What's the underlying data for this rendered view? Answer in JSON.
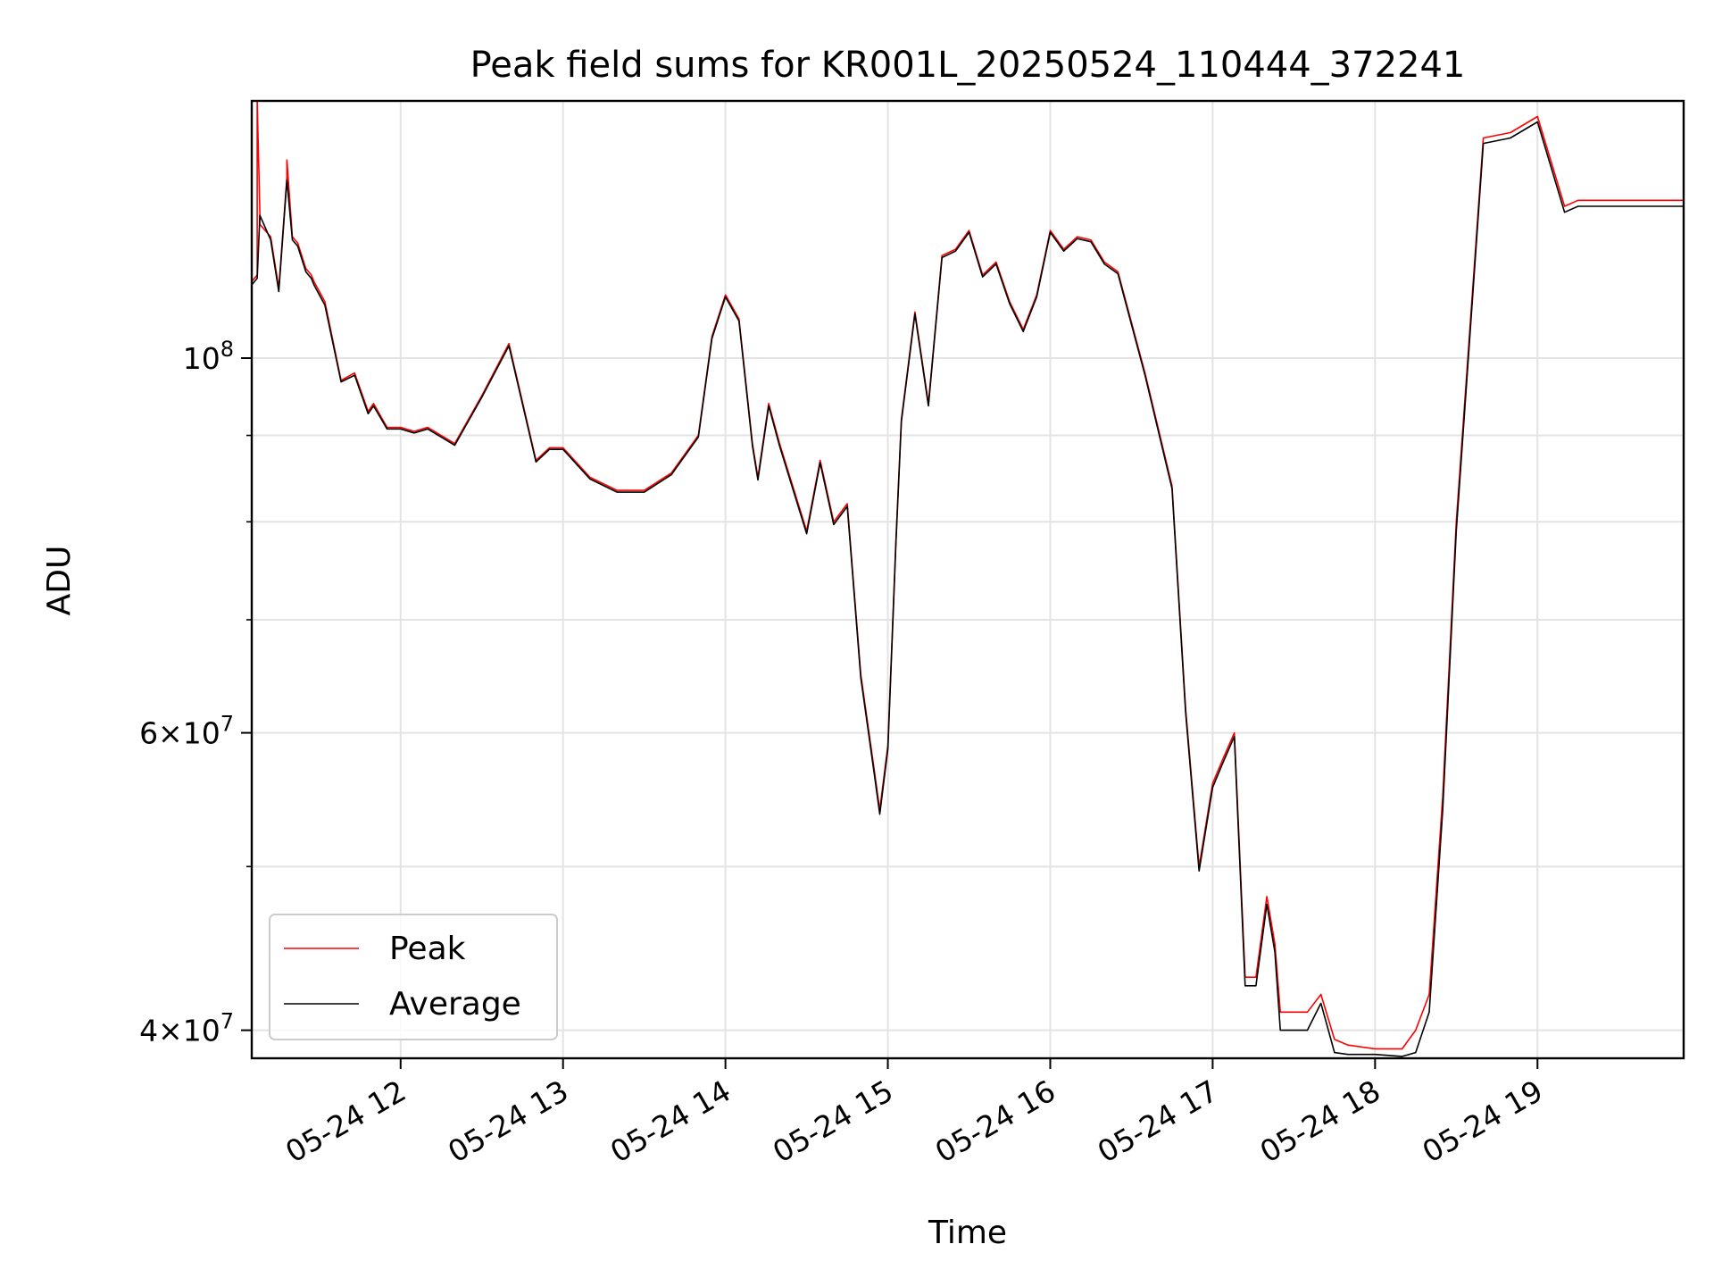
{
  "chart_data": {
    "type": "line",
    "title": "Peak field sums for KR001L_20250524_110444_372241",
    "xlabel": "Time",
    "ylabel": "ADU",
    "yscale": "log",
    "xlim": [
      "2025-05-24 11:05",
      "2025-05-24 19:54"
    ],
    "ylim": [
      38500000,
      142000000
    ],
    "grid": true,
    "legend_position": "lower-left",
    "x_tick_labels": [
      "05-24 12",
      "05-24 13",
      "05-24 14",
      "05-24 15",
      "05-24 16",
      "05-24 17",
      "05-24 18",
      "05-24 19"
    ],
    "x_tick_values": [
      "2025-05-24 12:00",
      "2025-05-24 13:00",
      "2025-05-24 14:00",
      "2025-05-24 15:00",
      "2025-05-24 16:00",
      "2025-05-24 17:00",
      "2025-05-24 18:00",
      "2025-05-24 19:00"
    ],
    "y_major_ticks": [
      {
        "value": 100000000,
        "base": "10",
        "exp": "8"
      },
      {
        "value": 60000000,
        "mant": "6",
        "base": "10",
        "exp": "7"
      },
      {
        "value": 40000000,
        "mant": "4",
        "base": "10",
        "exp": "7"
      }
    ],
    "y_minor_gridlines": [
      50000000,
      70000000,
      80000000,
      90000000
    ],
    "series": [
      {
        "name": "Peak",
        "color": "#ff0000",
        "x": [
          "2025-05-24 11:05",
          "2025-05-24 11:07",
          "2025-05-24 11:07",
          "2025-05-24 11:08",
          "2025-05-24 11:08",
          "2025-05-24 11:12",
          "2025-05-24 11:15",
          "2025-05-24 11:18",
          "2025-05-24 11:18",
          "2025-05-24 11:20",
          "2025-05-24 11:22",
          "2025-05-24 11:25",
          "2025-05-24 11:27",
          "2025-05-24 11:28",
          "2025-05-24 11:32",
          "2025-05-24 11:38",
          "2025-05-24 11:43",
          "2025-05-24 11:48",
          "2025-05-24 11:50",
          "2025-05-24 11:55",
          "2025-05-24 12:00",
          "2025-05-24 12:05",
          "2025-05-24 12:10",
          "2025-05-24 12:20",
          "2025-05-24 12:30",
          "2025-05-24 12:40",
          "2025-05-24 12:50",
          "2025-05-24 12:55",
          "2025-05-24 13:00",
          "2025-05-24 13:10",
          "2025-05-24 13:20",
          "2025-05-24 13:30",
          "2025-05-24 13:40",
          "2025-05-24 13:50",
          "2025-05-24 13:55",
          "2025-05-24 14:00",
          "2025-05-24 14:05",
          "2025-05-24 14:10",
          "2025-05-24 14:12",
          "2025-05-24 14:16",
          "2025-05-24 14:20",
          "2025-05-24 14:30",
          "2025-05-24 14:35",
          "2025-05-24 14:40",
          "2025-05-24 14:45",
          "2025-05-24 14:50",
          "2025-05-24 14:55",
          "2025-05-24 14:57",
          "2025-05-24 15:00",
          "2025-05-24 15:03",
          "2025-05-24 15:05",
          "2025-05-24 15:10",
          "2025-05-24 15:15",
          "2025-05-24 15:20",
          "2025-05-24 15:25",
          "2025-05-24 15:30",
          "2025-05-24 15:35",
          "2025-05-24 15:40",
          "2025-05-24 15:45",
          "2025-05-24 15:50",
          "2025-05-24 15:55",
          "2025-05-24 16:00",
          "2025-05-24 16:05",
          "2025-05-24 16:10",
          "2025-05-24 16:15",
          "2025-05-24 16:20",
          "2025-05-24 16:25",
          "2025-05-24 16:35",
          "2025-05-24 16:45",
          "2025-05-24 16:50",
          "2025-05-24 16:55",
          "2025-05-24 17:00",
          "2025-05-24 17:04",
          "2025-05-24 17:08",
          "2025-05-24 17:12",
          "2025-05-24 17:16",
          "2025-05-24 17:20",
          "2025-05-24 17:23",
          "2025-05-24 17:25",
          "2025-05-24 17:30",
          "2025-05-24 17:35",
          "2025-05-24 17:40",
          "2025-05-24 17:45",
          "2025-05-24 17:50",
          "2025-05-24 18:00",
          "2025-05-24 18:10",
          "2025-05-24 18:15",
          "2025-05-24 18:20",
          "2025-05-24 18:25",
          "2025-05-24 18:30",
          "2025-05-24 18:40",
          "2025-05-24 18:50",
          "2025-05-24 19:00",
          "2025-05-24 19:10",
          "2025-05-24 19:15",
          "2025-05-24 19:20",
          "2025-05-24 19:25",
          "2025-05-24 19:30",
          "2025-05-24 19:35",
          "2025-05-24 19:40",
          "2025-05-24 19:45",
          "2025-05-24 19:50",
          "2025-05-24 19:51",
          "2025-05-24 19:54"
        ],
        "values": [
          111000000,
          112000000,
          142000000,
          122000000,
          120000000,
          118000000,
          110000000,
          128000000,
          131000000,
          118000000,
          117000000,
          113000000,
          112000000,
          111000000,
          108000000,
          97000000,
          98000000,
          93000000,
          94000000,
          91000000,
          91000000,
          90500000,
          91000000,
          89000000,
          95000000,
          102000000,
          87000000,
          88500000,
          88500000,
          85000000,
          83500000,
          83500000,
          85500000,
          90000000,
          103000000,
          109000000,
          105500000,
          89000000,
          85000000,
          94000000,
          89000000,
          79000000,
          87000000,
          80000000,
          82000000,
          65000000,
          57000000,
          54000000,
          59000000,
          78000000,
          92000000,
          106500000,
          94000000,
          115000000,
          116000000,
          119000000,
          112000000,
          114000000,
          108000000,
          104000000,
          109000000,
          119000000,
          116000000,
          118000000,
          117500000,
          114000000,
          112500000,
          98000000,
          84000000,
          62000000,
          50000000,
          56000000,
          58000000,
          60000000,
          43000000,
          43000000,
          48000000,
          45000000,
          41000000,
          41000000,
          41000000,
          42000000,
          39500000,
          39200000,
          39000000,
          39000000,
          40000000,
          42000000,
          55000000,
          80000000,
          135000000,
          136000000,
          139000000,
          123000000,
          124000000,
          124000000,
          124000000,
          124000000,
          124000000,
          124000000,
          124000000,
          124000000,
          124000000,
          124000000
        ]
      },
      {
        "name": "Average",
        "color": "#000000",
        "x": [
          "2025-05-24 11:05",
          "2025-05-24 11:07",
          "2025-05-24 11:08",
          "2025-05-24 11:12",
          "2025-05-24 11:15",
          "2025-05-24 11:18",
          "2025-05-24 11:20",
          "2025-05-24 11:22",
          "2025-05-24 11:25",
          "2025-05-24 11:27",
          "2025-05-24 11:28",
          "2025-05-24 11:32",
          "2025-05-24 11:38",
          "2025-05-24 11:43",
          "2025-05-24 11:48",
          "2025-05-24 11:50",
          "2025-05-24 11:55",
          "2025-05-24 12:00",
          "2025-05-24 12:05",
          "2025-05-24 12:10",
          "2025-05-24 12:20",
          "2025-05-24 12:30",
          "2025-05-24 12:40",
          "2025-05-24 12:50",
          "2025-05-24 12:55",
          "2025-05-24 13:00",
          "2025-05-24 13:10",
          "2025-05-24 13:20",
          "2025-05-24 13:30",
          "2025-05-24 13:40",
          "2025-05-24 13:50",
          "2025-05-24 13:55",
          "2025-05-24 14:00",
          "2025-05-24 14:05",
          "2025-05-24 14:10",
          "2025-05-24 14:12",
          "2025-05-24 14:16",
          "2025-05-24 14:20",
          "2025-05-24 14:30",
          "2025-05-24 14:35",
          "2025-05-24 14:40",
          "2025-05-24 14:45",
          "2025-05-24 14:50",
          "2025-05-24 14:55",
          "2025-05-24 14:57",
          "2025-05-24 15:00",
          "2025-05-24 15:03",
          "2025-05-24 15:05",
          "2025-05-24 15:10",
          "2025-05-24 15:15",
          "2025-05-24 15:20",
          "2025-05-24 15:25",
          "2025-05-24 15:30",
          "2025-05-24 15:35",
          "2025-05-24 15:40",
          "2025-05-24 15:45",
          "2025-05-24 15:50",
          "2025-05-24 15:55",
          "2025-05-24 16:00",
          "2025-05-24 16:05",
          "2025-05-24 16:10",
          "2025-05-24 16:15",
          "2025-05-24 16:20",
          "2025-05-24 16:25",
          "2025-05-24 16:35",
          "2025-05-24 16:45",
          "2025-05-24 16:50",
          "2025-05-24 16:55",
          "2025-05-24 17:00",
          "2025-05-24 17:04",
          "2025-05-24 17:08",
          "2025-05-24 17:12",
          "2025-05-24 17:16",
          "2025-05-24 17:20",
          "2025-05-24 17:23",
          "2025-05-24 17:25",
          "2025-05-24 17:30",
          "2025-05-24 17:35",
          "2025-05-24 17:40",
          "2025-05-24 17:45",
          "2025-05-24 17:50",
          "2025-05-24 18:00",
          "2025-05-24 18:10",
          "2025-05-24 18:15",
          "2025-05-24 18:20",
          "2025-05-24 18:25",
          "2025-05-24 18:30",
          "2025-05-24 18:40",
          "2025-05-24 18:50",
          "2025-05-24 19:00",
          "2025-05-24 19:10",
          "2025-05-24 19:15",
          "2025-05-24 19:20",
          "2025-05-24 19:25",
          "2025-05-24 19:30",
          "2025-05-24 19:35",
          "2025-05-24 19:40",
          "2025-05-24 19:45",
          "2025-05-24 19:50",
          "2025-05-24 19:51",
          "2025-05-24 19:54"
        ],
        "values": [
          110500000,
          111500000,
          121500000,
          117500000,
          109500000,
          127500000,
          117500000,
          116500000,
          112500000,
          111500000,
          110500000,
          107500000,
          96800000,
          97700000,
          92700000,
          93700000,
          90800000,
          90800000,
          90300000,
          90800000,
          88800000,
          94800000,
          101700000,
          86800000,
          88300000,
          88300000,
          84800000,
          83300000,
          83300000,
          85300000,
          89800000,
          102700000,
          108700000,
          105200000,
          88700000,
          84700000,
          93700000,
          88700000,
          78700000,
          86700000,
          79700000,
          81700000,
          64700000,
          56700000,
          53700000,
          58700000,
          77700000,
          91700000,
          106200000,
          93700000,
          114700000,
          115700000,
          118700000,
          111700000,
          113700000,
          107700000,
          103700000,
          108700000,
          118700000,
          115700000,
          117700000,
          117200000,
          113700000,
          112200000,
          97700000,
          83700000,
          61700000,
          49700000,
          55700000,
          57700000,
          59700000,
          42500000,
          42500000,
          47500000,
          44500000,
          40000000,
          40000000,
          40000000,
          41500000,
          38800000,
          38700000,
          38700000,
          38600000,
          38800000,
          41000000,
          54000000,
          79000000,
          134000000,
          135000000,
          138000000,
          122000000,
          123000000,
          123000000,
          123000000,
          123000000,
          123000000,
          123000000,
          123000000,
          123000000,
          123000000,
          123000000
        ]
      }
    ]
  }
}
